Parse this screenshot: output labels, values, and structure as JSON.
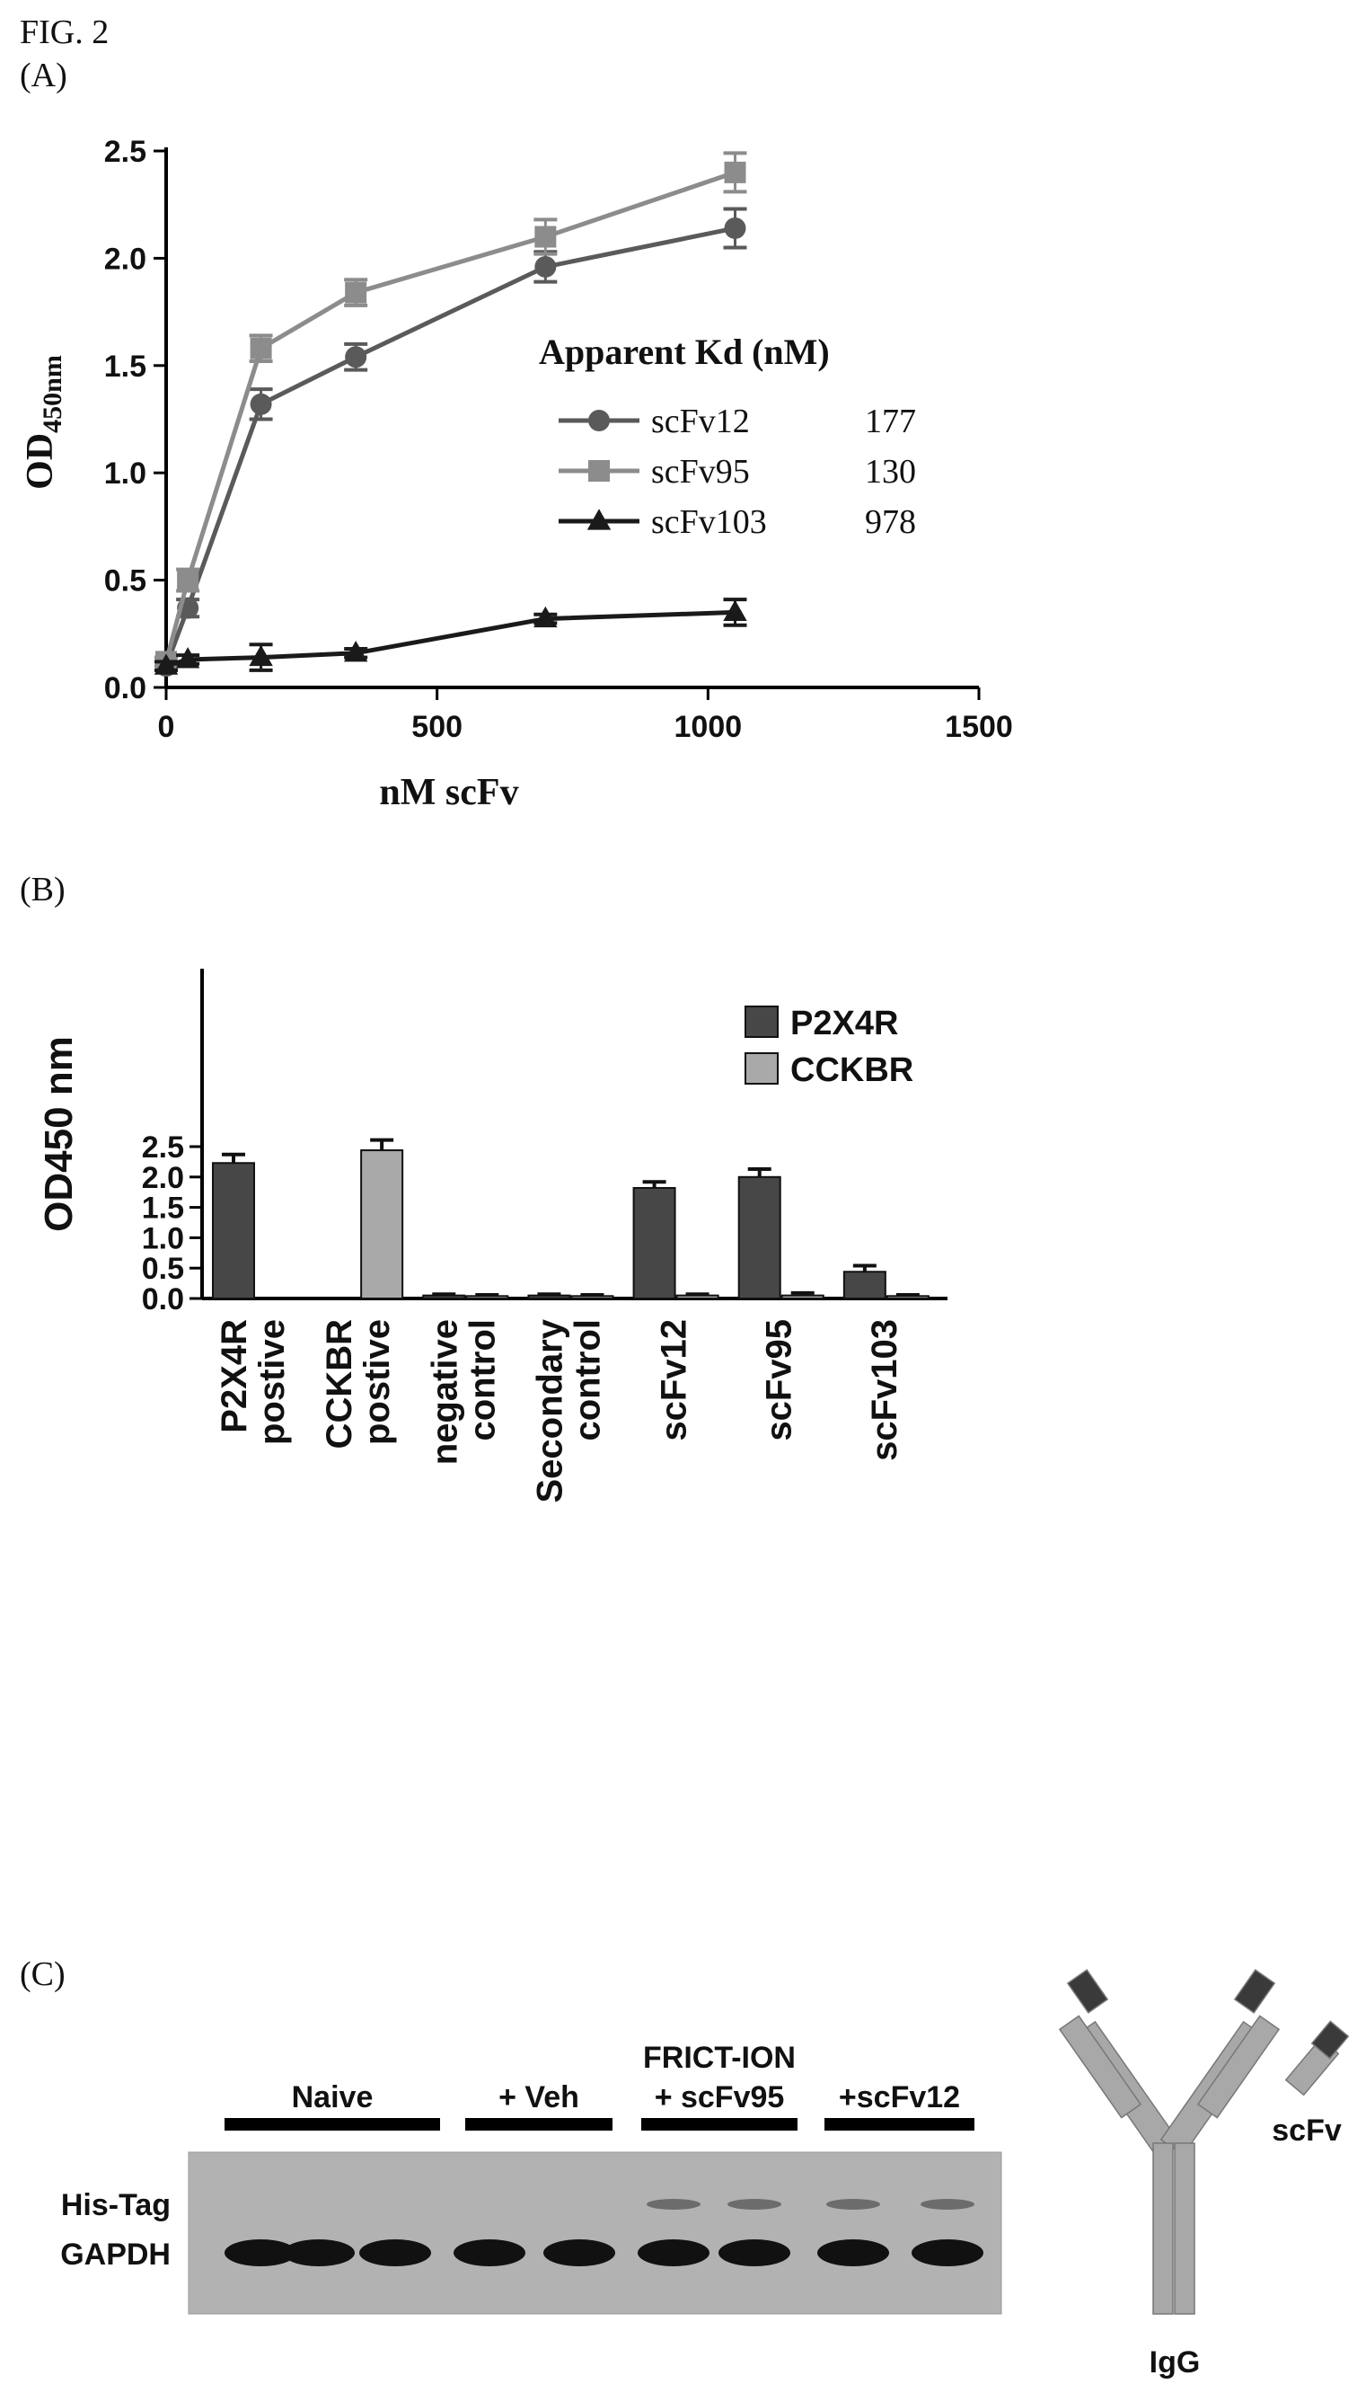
{
  "figure": {
    "title": "FIG. 2",
    "panel_a_letter": "(A)",
    "panel_b_letter": "(B)",
    "panel_c_letter": "(C)"
  },
  "chart_data": [
    {
      "type": "line",
      "panel": "A",
      "xlabel": "nM scFv",
      "ylabel_main": "OD",
      "ylabel_sub": "450nm",
      "xlim": [
        0,
        1500
      ],
      "ylim": [
        0,
        2.5
      ],
      "xticks": [
        0,
        500,
        1000,
        1500
      ],
      "yticks": [
        "0.0",
        "0.5",
        "1.0",
        "1.5",
        "2.0",
        "2.5"
      ],
      "legend_title": "Apparent Kd (nM)",
      "legend_position": "right",
      "series": [
        {
          "name": "scFv12",
          "kd": "177",
          "color": "#5a5a5a",
          "marker": "circle",
          "x": [
            0,
            40,
            175,
            350,
            700,
            1050
          ],
          "y": [
            0.1,
            0.37,
            1.32,
            1.54,
            1.96,
            2.14
          ],
          "err": [
            0.02,
            0.04,
            0.07,
            0.06,
            0.07,
            0.09
          ]
        },
        {
          "name": "scFv95",
          "kd": "130",
          "color": "#8c8c8c",
          "marker": "square",
          "x": [
            0,
            40,
            175,
            350,
            700,
            1050
          ],
          "y": [
            0.12,
            0.5,
            1.58,
            1.84,
            2.1,
            2.4
          ],
          "err": [
            0.02,
            0.05,
            0.06,
            0.06,
            0.08,
            0.09
          ]
        },
        {
          "name": "scFv103",
          "kd": "978",
          "color": "#1a1a1a",
          "marker": "triangle",
          "x": [
            0,
            40,
            175,
            350,
            700,
            1050
          ],
          "y": [
            0.1,
            0.13,
            0.14,
            0.16,
            0.32,
            0.35
          ],
          "err": [
            0.02,
            0.02,
            0.06,
            0.02,
            0.02,
            0.06
          ]
        }
      ]
    },
    {
      "type": "bar",
      "panel": "B",
      "ylabel": "OD450 nm",
      "ylim": [
        0,
        2.8
      ],
      "yticks": [
        "0.0",
        "0.5",
        "1.0",
        "1.5",
        "2.0",
        "2.5"
      ],
      "legend_position": "top-right",
      "categories": [
        [
          "P2X4R",
          "postive"
        ],
        [
          "CCKBR",
          "postive"
        ],
        [
          "negative",
          "control"
        ],
        [
          "Secondary",
          "control"
        ],
        [
          "scFv12"
        ],
        [
          "scFv95"
        ],
        [
          "scFv103"
        ]
      ],
      "series": [
        {
          "name": "P2X4R",
          "color": "#474747",
          "values": [
            2.23,
            0,
            0.05,
            0.05,
            1.82,
            2.0,
            0.44
          ],
          "err": [
            0.14,
            0,
            0.02,
            0.02,
            0.1,
            0.13,
            0.1
          ]
        },
        {
          "name": "CCKBR",
          "color": "#a9a9a9",
          "values": [
            0,
            2.44,
            0.04,
            0.04,
            0.05,
            0.05,
            0.04
          ],
          "err": [
            0,
            0.17,
            0.02,
            0.02,
            0.02,
            0.04,
            0.02
          ]
        }
      ]
    }
  ],
  "panel_c": {
    "groups": [
      {
        "label_lines": [
          "Naive"
        ],
        "lanes": 3
      },
      {
        "label_lines": [
          "+ Veh"
        ],
        "lanes": 2
      },
      {
        "label_lines": [
          "FRICT-ION",
          "+ scFv95"
        ],
        "lanes": 2
      },
      {
        "label_lines": [
          "+scFv12"
        ],
        "lanes": 2
      }
    ],
    "row_labels": [
      "His-Tag",
      "GAPDH"
    ],
    "diagram_labels": {
      "scfv": "scFv",
      "igg": "IgG"
    }
  }
}
